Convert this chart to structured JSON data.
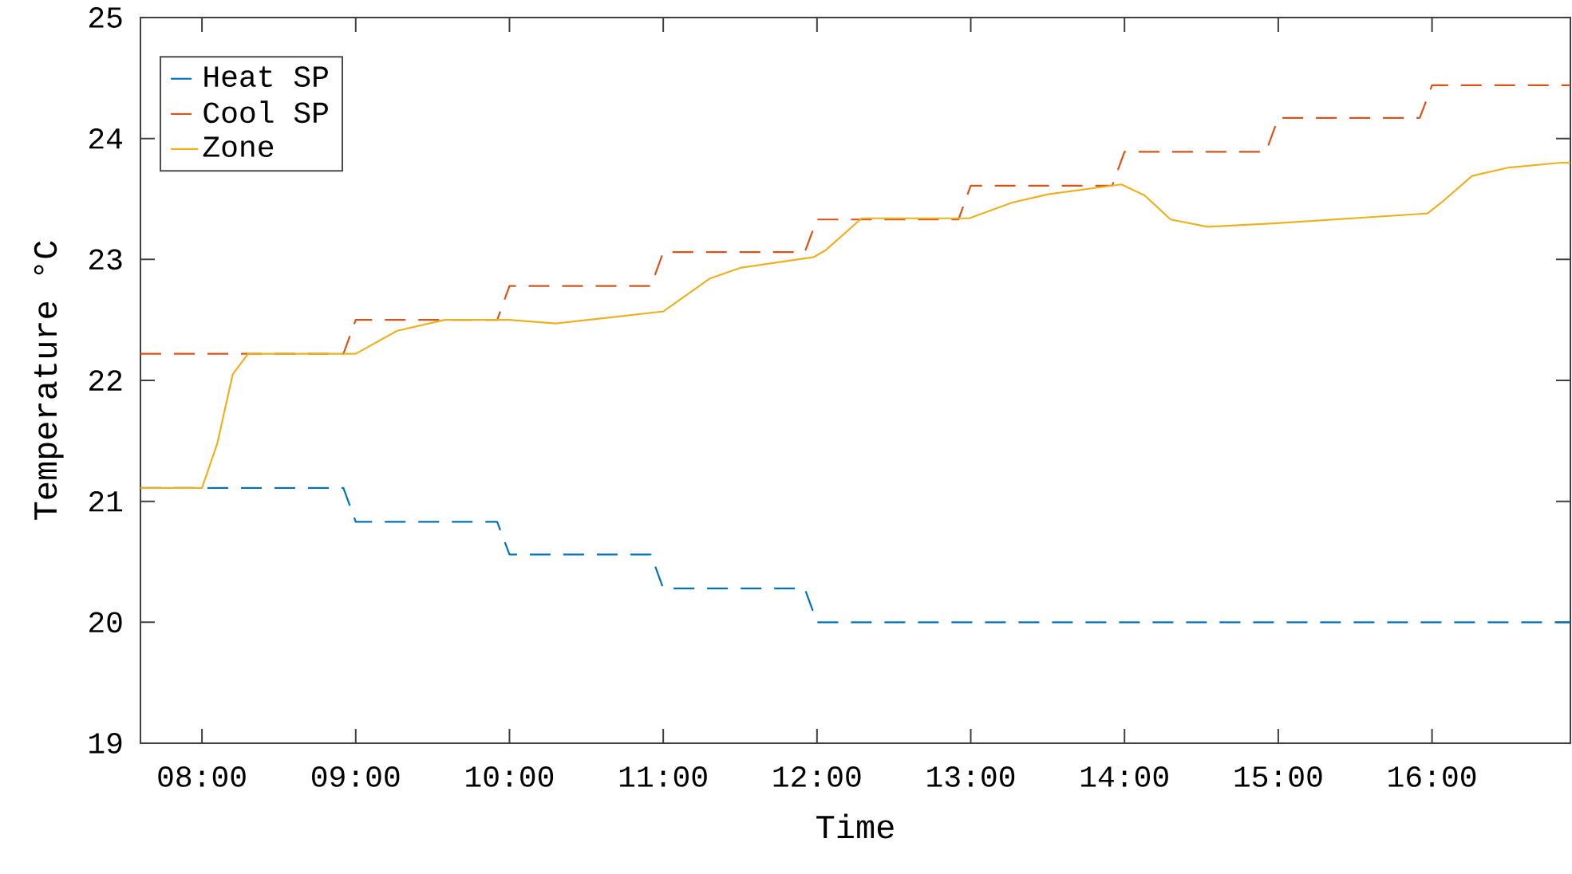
{
  "chart_data": {
    "type": "line",
    "xlabel": "Time",
    "ylabel": "Temperature °C",
    "xlim": [
      7.6,
      16.9
    ],
    "ylim": [
      19,
      25
    ],
    "xticks": [
      {
        "value": 8,
        "label": "08:00"
      },
      {
        "value": 9,
        "label": "09:00"
      },
      {
        "value": 10,
        "label": "10:00"
      },
      {
        "value": 11,
        "label": "11:00"
      },
      {
        "value": 12,
        "label": "12:00"
      },
      {
        "value": 13,
        "label": "13:00"
      },
      {
        "value": 14,
        "label": "14:00"
      },
      {
        "value": 15,
        "label": "15:00"
      },
      {
        "value": 16,
        "label": "16:00"
      }
    ],
    "yticks": [
      19,
      20,
      21,
      22,
      23,
      24,
      25
    ],
    "legend": "top left",
    "grid": false,
    "series": [
      {
        "name": "Heat SP",
        "color": "#0072bd",
        "line_style": "dashed",
        "x": [
          7.6,
          8.92,
          9.0,
          9.92,
          10.0,
          10.92,
          11.0,
          11.92,
          12.0,
          16.9
        ],
        "values": [
          21.11,
          21.11,
          20.83,
          20.83,
          20.56,
          20.56,
          20.28,
          20.28,
          20.0,
          20.0
        ]
      },
      {
        "name": "Cool SP",
        "color": "#d95319",
        "line_style": "dashed",
        "x": [
          7.6,
          8.92,
          9.0,
          9.92,
          10.0,
          10.92,
          11.0,
          11.92,
          12.0,
          12.92,
          13.0,
          13.92,
          14.0,
          14.92,
          15.0,
          15.92,
          16.0,
          16.9
        ],
        "values": [
          22.22,
          22.22,
          22.5,
          22.5,
          22.78,
          22.78,
          23.06,
          23.06,
          23.33,
          23.33,
          23.61,
          23.61,
          23.89,
          23.89,
          24.17,
          24.17,
          24.44,
          24.44
        ]
      },
      {
        "name": "Zone",
        "color": "#edb120",
        "line_style": "solid",
        "x": [
          7.6,
          8.0,
          8.1,
          8.2,
          8.3,
          9.0,
          9.27,
          9.58,
          10.0,
          10.3,
          11.0,
          11.3,
          11.5,
          11.98,
          12.06,
          12.29,
          12.99,
          13.27,
          13.51,
          13.98,
          14.13,
          14.3,
          14.54,
          14.99,
          15.97,
          16.07,
          16.26,
          16.5,
          16.84,
          16.9
        ],
        "values": [
          21.11,
          21.11,
          21.48,
          22.05,
          22.22,
          22.22,
          22.41,
          22.5,
          22.5,
          22.47,
          22.57,
          22.84,
          22.93,
          23.02,
          23.08,
          23.34,
          23.34,
          23.47,
          23.54,
          23.62,
          23.53,
          23.33,
          23.27,
          23.3,
          23.38,
          23.48,
          23.69,
          23.76,
          23.8,
          23.8
        ]
      }
    ]
  }
}
